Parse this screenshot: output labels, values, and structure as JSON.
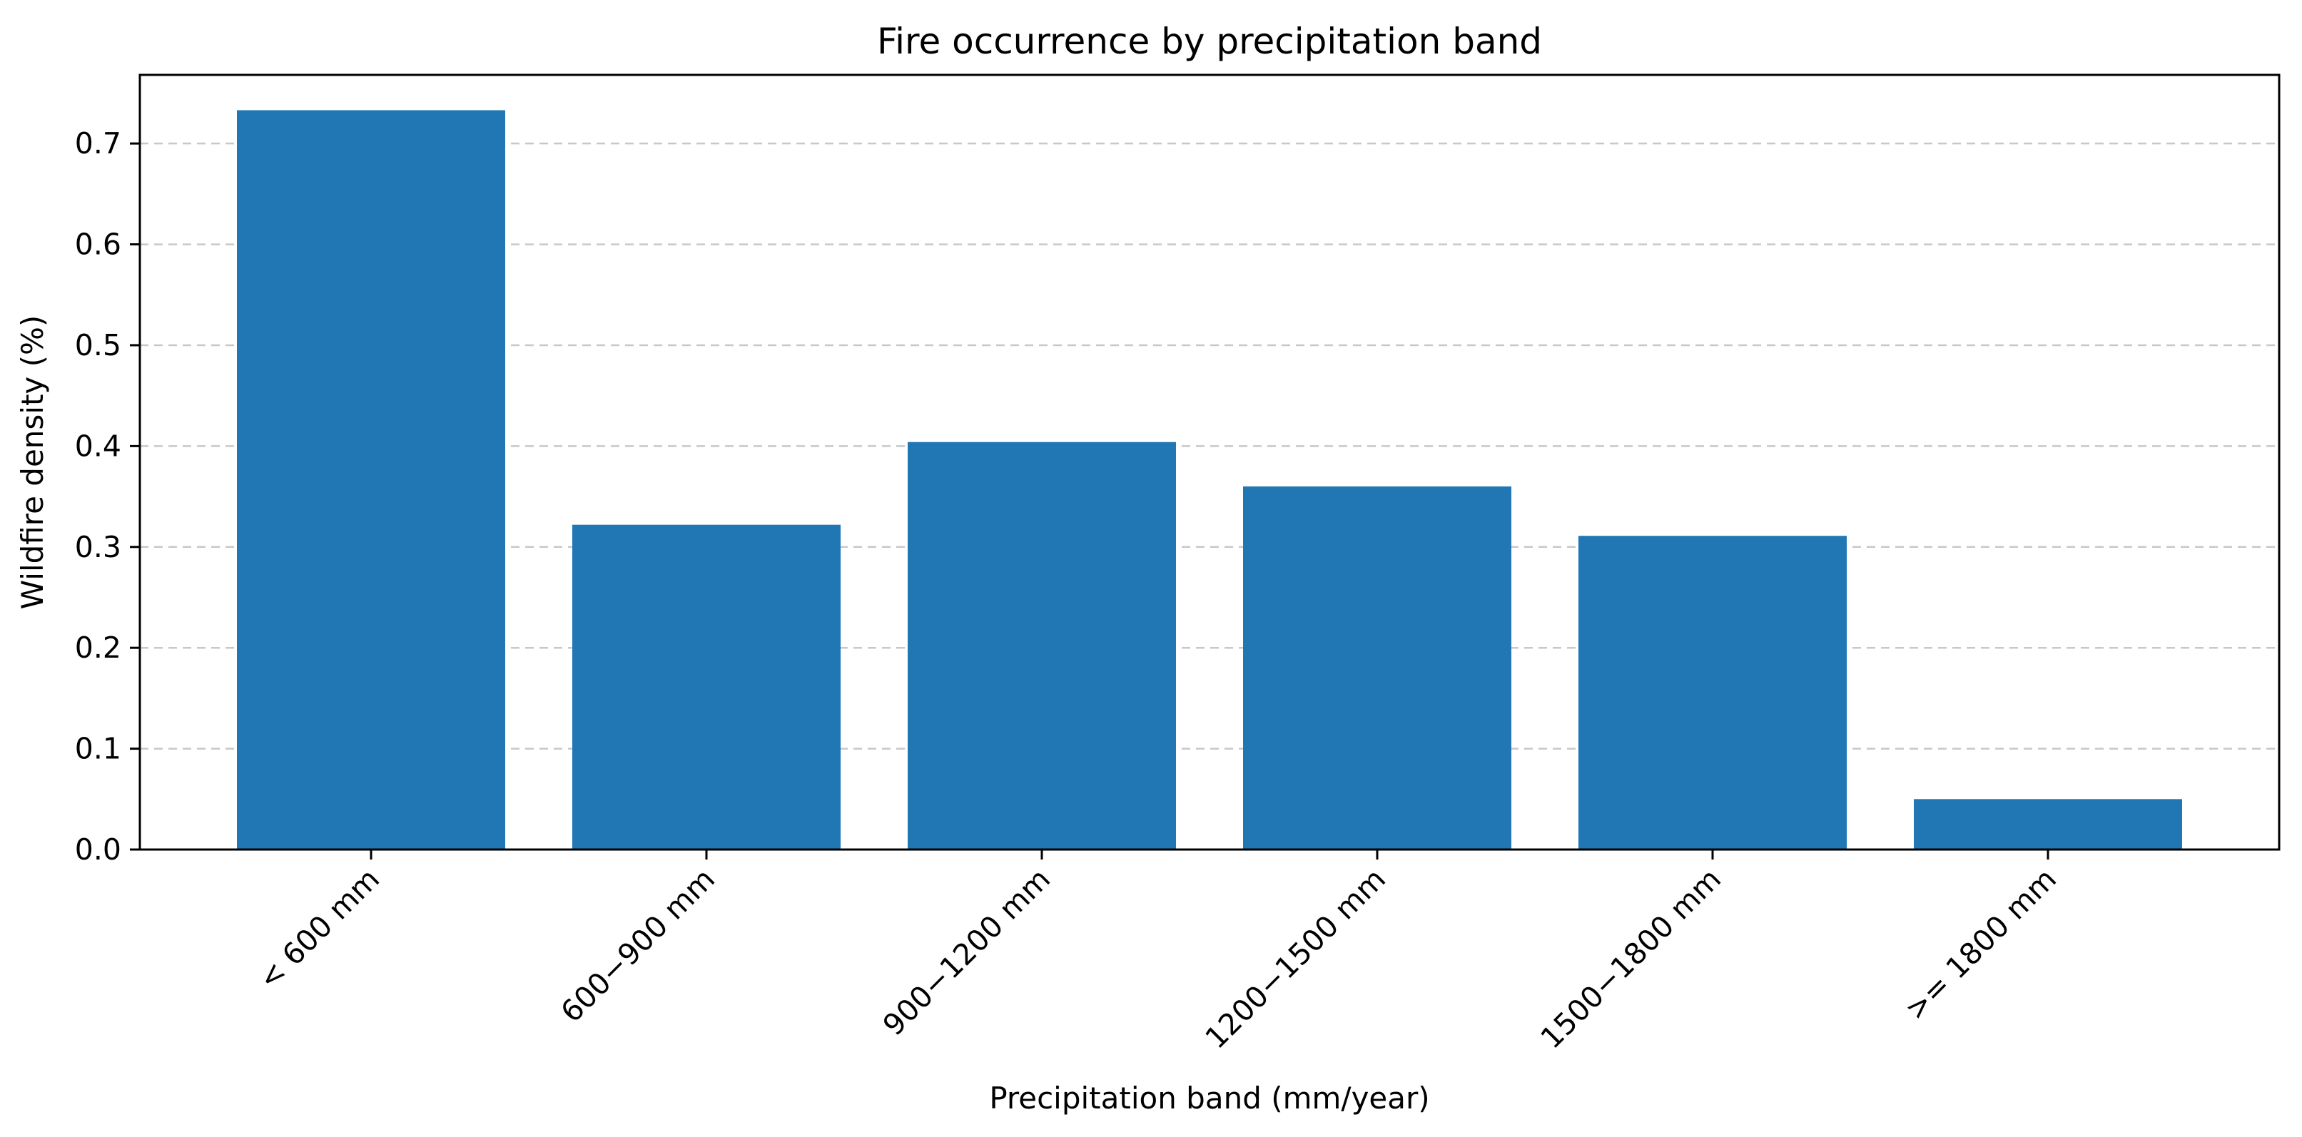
{
  "chart_data": {
    "type": "bar",
    "title": "Fire occurrence by precipitation band",
    "xlabel": "Precipitation band (mm/year)",
    "ylabel": "Wildfire density (%)",
    "categories": [
      "< 600 mm",
      "600−900 mm",
      "900−1200 mm",
      "1200−1500 mm",
      "1500−1800 mm",
      ">= 1800 mm"
    ],
    "values": [
      0.733,
      0.322,
      0.404,
      0.36,
      0.311,
      0.05
    ],
    "ylim": [
      0,
      0.768
    ],
    "yticks": [
      "0.0",
      "0.1",
      "0.2",
      "0.3",
      "0.4",
      "0.5",
      "0.6",
      "0.7"
    ],
    "grid": "horizontal dashed",
    "bar_color": "#2077b4",
    "grid_color": "#c8c8c8"
  }
}
